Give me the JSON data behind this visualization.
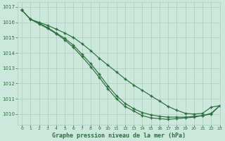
{
  "title": "Graphe pression niveau de la mer (hPa)",
  "background_color": "#cce8dc",
  "grid_color": "#aaccbb",
  "line_color": "#2d6e3e",
  "xlim": [
    -0.5,
    23
  ],
  "ylim": [
    1009.3,
    1017.3
  ],
  "yticks": [
    1010,
    1011,
    1012,
    1013,
    1014,
    1015,
    1016,
    1017
  ],
  "xticks": [
    0,
    1,
    2,
    3,
    4,
    5,
    6,
    7,
    8,
    9,
    10,
    11,
    12,
    13,
    14,
    15,
    16,
    17,
    18,
    19,
    20,
    21,
    22,
    23
  ],
  "line1": [
    1016.8,
    1016.2,
    1016.0,
    1015.8,
    1015.55,
    1015.3,
    1015.0,
    1014.6,
    1014.15,
    1013.65,
    1013.2,
    1012.75,
    1012.3,
    1011.9,
    1011.55,
    1011.2,
    1010.85,
    1010.5,
    1010.25,
    1010.05,
    1010.0,
    1010.05,
    1010.45,
    1010.55
  ],
  "line2": [
    1016.8,
    1016.2,
    1015.95,
    1015.65,
    1015.3,
    1014.95,
    1014.5,
    1013.9,
    1013.3,
    1012.6,
    1011.85,
    1011.2,
    1010.7,
    1010.35,
    1010.1,
    1009.95,
    1009.85,
    1009.8,
    1009.8,
    1009.8,
    1009.85,
    1009.9,
    1010.05,
    1010.55
  ],
  "line3": [
    1016.8,
    1016.2,
    1015.9,
    1015.6,
    1015.25,
    1014.85,
    1014.35,
    1013.75,
    1013.1,
    1012.4,
    1011.65,
    1011.0,
    1010.5,
    1010.2,
    1009.9,
    1009.75,
    1009.7,
    1009.65,
    1009.7,
    1009.75,
    1009.8,
    1009.9,
    1010.0,
    1010.55
  ]
}
